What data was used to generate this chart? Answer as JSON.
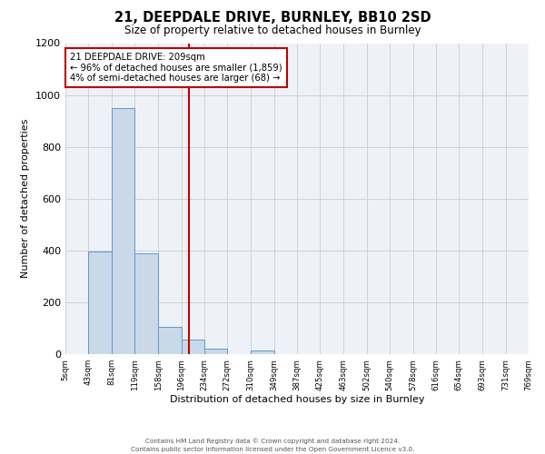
{
  "title": "21, DEEPDALE DRIVE, BURNLEY, BB10 2SD",
  "subtitle": "Size of property relative to detached houses in Burnley",
  "xlabel": "Distribution of detached houses by size in Burnley",
  "ylabel": "Number of detached properties",
  "bar_edges": [
    5,
    43,
    81,
    119,
    158,
    196,
    234,
    272,
    310,
    349,
    387,
    425,
    463,
    502,
    540,
    578,
    616,
    654,
    693,
    731,
    769
  ],
  "bar_heights": [
    0,
    395,
    950,
    390,
    105,
    55,
    20,
    0,
    15,
    0,
    0,
    0,
    0,
    0,
    0,
    0,
    0,
    0,
    0,
    0
  ],
  "bar_color": "#c9d9e8",
  "bar_edge_color": "#5b9bd5",
  "property_line_x": 209,
  "property_line_color": "#c00000",
  "annotation_line1": "21 DEEPDALE DRIVE: 209sqm",
  "annotation_line2": "← 96% of detached houses are smaller (1,859)",
  "annotation_line3": "4% of semi-detached houses are larger (68) →",
  "annotation_box_color": "#c00000",
  "annotation_text_color": "#000000",
  "ylim": [
    0,
    1200
  ],
  "yticks": [
    0,
    200,
    400,
    600,
    800,
    1000,
    1200
  ],
  "tick_labels": [
    "5sqm",
    "43sqm",
    "81sqm",
    "119sqm",
    "158sqm",
    "196sqm",
    "234sqm",
    "272sqm",
    "310sqm",
    "349sqm",
    "387sqm",
    "425sqm",
    "463sqm",
    "502sqm",
    "540sqm",
    "578sqm",
    "616sqm",
    "654sqm",
    "693sqm",
    "731sqm",
    "769sqm"
  ],
  "footer_line1": "Contains HM Land Registry data © Crown copyright and database right 2024.",
  "footer_line2": "Contains public sector information licensed under the Open Government Licence v3.0.",
  "grid_color": "#d0d0d0",
  "bg_color": "#eef2f8",
  "fig_bg_color": "#ffffff",
  "title_fontsize": 10.5,
  "subtitle_fontsize": 8.5
}
